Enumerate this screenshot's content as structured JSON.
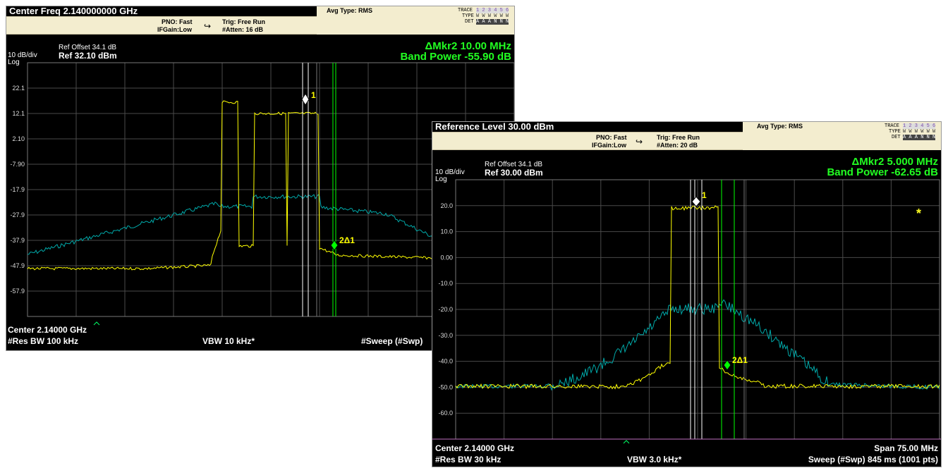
{
  "colors": {
    "trace_yellow": "#ffff00",
    "trace_cyan": "#00b3b3",
    "marker_green": "#00ff00",
    "grid": "#555555"
  },
  "left": {
    "title": "Center Freq 2.140000000 GHz",
    "pno": "PNO: Fast",
    "ifgain": "IFGain:Low",
    "trig": "Trig: Free Run",
    "atten": "#Atten: 16 dB",
    "avg": "Avg Type: RMS",
    "trace_labels": {
      "trace": "TRACE",
      "type": "TYPE",
      "det": "DET",
      "nums": "1 2 3 4 5 6",
      "typevals": "W W W W W W",
      "detvals": "A A A N N N"
    },
    "ref_offset": "Ref Offset 34.1 dB",
    "ref": "Ref 32.10 dBm",
    "scale": "10 dB/div",
    "log": "Log",
    "mkr": "ΔMkr2 10.00 MHz",
    "band": "Band Power -55.90 dB",
    "yticks": [
      "22.1",
      "12.1",
      "2.10",
      "-7.90",
      "-17.9",
      "-27.9",
      "-37.9",
      "-47.9",
      "-57.9"
    ],
    "m1": "1",
    "m2": "2Δ1",
    "center": "Center 2.14000 GHz",
    "rbw": "#Res BW 100 kHz",
    "vbw": "VBW 10 kHz*",
    "sweep": "#Sweep (#Swp)"
  },
  "right": {
    "title": "Reference Level 30.00 dBm",
    "pno": "PNO: Fast",
    "ifgain": "IFGain:Low",
    "trig": "Trig: Free Run",
    "atten": "#Atten: 20 dB",
    "avg": "Avg Type: RMS",
    "trace_labels": {
      "trace": "TRACE",
      "type": "TYPE",
      "det": "DET",
      "nums": "1 2 3 4 5 6",
      "typevals": "W W W W W W",
      "detvals": "A A A N N N"
    },
    "ref_offset": "Ref Offset 34.1 dB",
    "ref": "Ref 30.00 dBm",
    "scale": "10 dB/div",
    "log": "Log",
    "mkr": "ΔMkr2 5.000 MHz",
    "band": "Band Power -62.65 dB",
    "yticks": [
      "20.0",
      "10.0",
      "0.00",
      "-10.0",
      "-20.0",
      "-30.0",
      "-40.0",
      "-50.0",
      "-60.0"
    ],
    "star": "*",
    "m1": "1",
    "m2": "2Δ1",
    "center": "Center 2.14000 GHz",
    "span": "Span 75.00 MHz",
    "rbw": "#Res BW 30 kHz",
    "vbw": "VBW 3.0 kHz*",
    "sweep": "Sweep (#Swp)  845 ms (1001 pts)"
  }
}
